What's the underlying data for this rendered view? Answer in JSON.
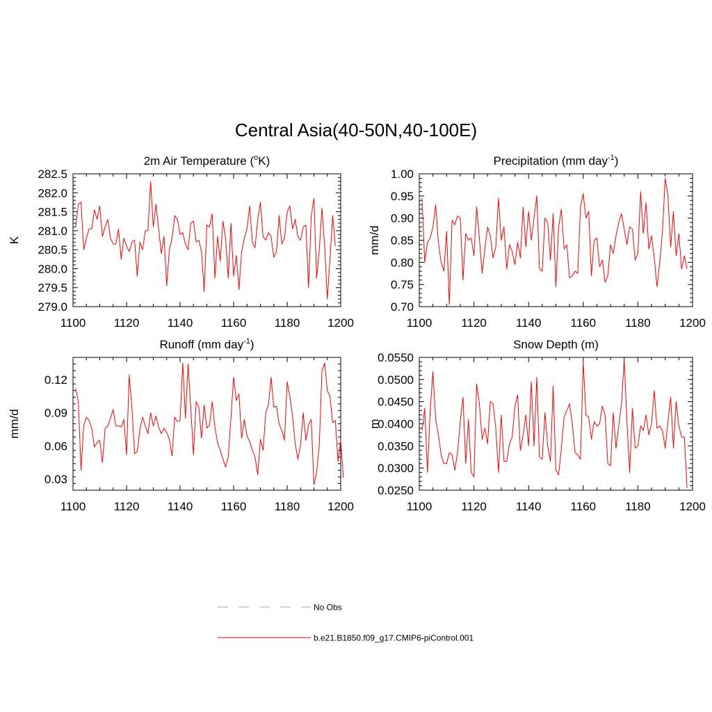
{
  "figure_title": "Central Asia(40-50N,40-100E)",
  "colors": {
    "model": "#ff0000",
    "obs": "#9999ff",
    "axis": "#000000"
  },
  "legend": [
    {
      "label": "No Obs",
      "style": "dashed",
      "color": "#9999ff"
    },
    {
      "label": "b.e21.B1850.f09_g17.CMIP6-piControl.001",
      "style": "solid",
      "color": "#ff0000"
    }
  ],
  "chart_data": [
    {
      "type": "line",
      "position": "top-left",
      "title_main": "2m Air Temperature (",
      "title_sup": "o",
      "title_tail": "K)",
      "ylabel": "K",
      "xlim": [
        1100,
        1200
      ],
      "ylim": [
        279.0,
        282.5
      ],
      "xticks": [
        1100,
        1120,
        1140,
        1160,
        1180,
        1200
      ],
      "yticks": [
        279.0,
        279.5,
        280.0,
        280.5,
        281.0,
        281.5,
        282.0,
        282.5
      ],
      "ytick_decimals": 1,
      "x_start": 1101,
      "series": [
        {
          "name": "b.e21.B1850.f09_g17.CMIP6-piControl.001",
          "values": [
            281.1,
            281.7,
            281.75,
            280.5,
            280.8,
            281.05,
            281.05,
            281.55,
            281.3,
            281.65,
            280.85,
            281.1,
            281.3,
            280.8,
            280.65,
            280.65,
            281.05,
            280.25,
            280.8,
            280.6,
            280.45,
            280.7,
            280.75,
            279.8,
            280.7,
            280.5,
            281.0,
            281.0,
            282.3,
            281.1,
            281.7,
            281.05,
            280.4,
            280.85,
            279.55,
            280.5,
            280.8,
            281.4,
            281.3,
            280.9,
            280.95,
            280.65,
            280.5,
            281.2,
            281.25,
            280.7,
            280.75,
            280.45,
            279.4,
            281.15,
            281.1,
            281.45,
            279.75,
            280.85,
            280.2,
            281.25,
            280.8,
            279.75,
            281.2,
            279.8,
            280.35,
            279.45,
            280.45,
            280.8,
            281.05,
            281.65,
            280.7,
            280.55,
            281.3,
            281.75,
            280.85,
            280.75,
            280.95,
            280.85,
            280.3,
            280.45,
            281.4,
            280.65,
            280.8,
            281.5,
            281.65,
            281.05,
            281.3,
            280.85,
            280.75,
            281.1,
            281.15,
            279.5,
            281.4,
            281.85,
            279.75,
            280.5,
            281.6,
            280.6,
            279.2,
            280.25,
            281.4,
            280.6
          ]
        }
      ]
    },
    {
      "type": "line",
      "position": "top-right",
      "title_main": "Precipitation (mm day",
      "title_sup": "-1",
      "title_tail": ")",
      "ylabel": "mm/d",
      "xlim": [
        1100,
        1200
      ],
      "ylim": [
        0.7,
        1.0
      ],
      "xticks": [
        1100,
        1120,
        1140,
        1160,
        1180,
        1200
      ],
      "yticks": [
        0.7,
        0.75,
        0.8,
        0.85,
        0.9,
        0.95,
        1.0
      ],
      "ytick_decimals": 2,
      "x_start": 1101,
      "series": [
        {
          "name": "b.e21.B1850.f09_g17.CMIP6-piControl.001",
          "values": [
            0.945,
            0.8,
            0.845,
            0.855,
            0.88,
            0.93,
            0.845,
            0.8,
            0.78,
            0.87,
            0.705,
            0.895,
            0.885,
            0.905,
            0.9,
            0.76,
            0.865,
            0.85,
            0.855,
            0.815,
            0.925,
            0.855,
            0.775,
            0.83,
            0.88,
            0.86,
            0.81,
            0.835,
            0.945,
            0.85,
            0.88,
            0.785,
            0.84,
            0.825,
            0.795,
            0.845,
            0.81,
            0.925,
            0.835,
            0.915,
            0.85,
            0.9,
            0.95,
            0.785,
            0.78,
            0.9,
            0.89,
            0.805,
            0.91,
            0.745,
            0.88,
            0.92,
            0.83,
            0.84,
            0.765,
            0.77,
            0.78,
            0.775,
            0.925,
            0.955,
            0.9,
            0.915,
            0.77,
            0.85,
            0.855,
            0.79,
            0.805,
            0.755,
            0.77,
            0.84,
            0.82,
            0.86,
            0.89,
            0.91,
            0.875,
            0.84,
            0.88,
            0.875,
            0.805,
            0.82,
            0.96,
            0.865,
            0.935,
            0.83,
            0.86,
            0.81,
            0.745,
            0.8,
            0.87,
            0.99,
            0.95,
            0.835,
            0.915,
            0.815,
            0.865,
            0.785,
            0.815,
            0.785
          ]
        }
      ]
    },
    {
      "type": "line",
      "position": "bottom-left",
      "title_main": "Runoff (mm day",
      "title_sup": "-1",
      "title_tail": ")",
      "ylabel": "mm/d",
      "xlim": [
        1100,
        1200
      ],
      "ylim": [
        0.02,
        0.14
      ],
      "xticks": [
        1100,
        1120,
        1140,
        1160,
        1180,
        1200
      ],
      "yticks": [
        0.03,
        0.06,
        0.09,
        0.12
      ],
      "ytick_decimals": 2,
      "x_start": 1101,
      "series": [
        {
          "name": "b.e21.B1850.f09_g17.CMIP6-piControl.001",
          "values": [
            0.112,
            0.1,
            0.038,
            0.078,
            0.086,
            0.083,
            0.076,
            0.059,
            0.063,
            0.065,
            0.045,
            0.076,
            0.078,
            0.085,
            0.093,
            0.078,
            0.078,
            0.077,
            0.084,
            0.052,
            0.124,
            0.095,
            0.053,
            0.055,
            0.075,
            0.086,
            0.078,
            0.071,
            0.09,
            0.078,
            0.087,
            0.077,
            0.071,
            0.076,
            0.072,
            0.066,
            0.051,
            0.086,
            0.082,
            0.083,
            0.135,
            0.085,
            0.134,
            0.094,
            0.052,
            0.1,
            0.095,
            0.067,
            0.097,
            0.076,
            0.079,
            0.1,
            0.077,
            0.063,
            0.056,
            0.048,
            0.041,
            0.05,
            0.085,
            0.122,
            0.101,
            0.107,
            0.067,
            0.084,
            0.069,
            0.064,
            0.056,
            0.05,
            0.034,
            0.066,
            0.056,
            0.09,
            0.097,
            0.122,
            0.095,
            0.096,
            0.08,
            0.074,
            0.065,
            0.118,
            0.105,
            0.087,
            0.062,
            0.048,
            0.061,
            0.09,
            0.065,
            0.079,
            0.084,
            0.025,
            0.036,
            0.061,
            0.128,
            0.135,
            0.11,
            0.105,
            0.081,
            0.083,
            0.046,
            0.065,
            0.031
          ]
        }
      ]
    },
    {
      "type": "line",
      "position": "bottom-right",
      "title_main": "Snow Depth (m)",
      "title_sup": "",
      "title_tail": "",
      "ylabel": "m",
      "xlim": [
        1100,
        1200
      ],
      "ylim": [
        0.025,
        0.055
      ],
      "xticks": [
        1100,
        1120,
        1140,
        1160,
        1180,
        1200
      ],
      "yticks": [
        0.025,
        0.03,
        0.035,
        0.04,
        0.045,
        0.05,
        0.055
      ],
      "ytick_decimals": 4,
      "x_start": 1101,
      "series": [
        {
          "name": "b.e21.B1850.f09_g17.CMIP6-piControl.001",
          "values": [
            0.0385,
            0.0435,
            0.029,
            0.043,
            0.0518,
            0.041,
            0.0375,
            0.033,
            0.031,
            0.031,
            0.0335,
            0.033,
            0.0295,
            0.0335,
            0.0405,
            0.046,
            0.031,
            0.041,
            0.029,
            0.028,
            0.049,
            0.0445,
            0.0365,
            0.039,
            0.0355,
            0.045,
            0.0445,
            0.039,
            0.029,
            0.042,
            0.0315,
            0.0315,
            0.0355,
            0.037,
            0.044,
            0.0465,
            0.034,
            0.0375,
            0.042,
            0.035,
            0.0495,
            0.035,
            0.0505,
            0.0325,
            0.032,
            0.0425,
            0.035,
            0.0315,
            0.0485,
            0.0295,
            0.0285,
            0.0345,
            0.0415,
            0.043,
            0.0445,
            0.04,
            0.0335,
            0.033,
            0.032,
            0.054,
            0.042,
            0.0415,
            0.0365,
            0.0405,
            0.0395,
            0.04,
            0.044,
            0.042,
            0.031,
            0.0305,
            0.0425,
            0.0345,
            0.0395,
            0.0445,
            0.0545,
            0.0405,
            0.029,
            0.0435,
            0.0345,
            0.035,
            0.0395,
            0.0385,
            0.042,
            0.0375,
            0.04,
            0.0475,
            0.039,
            0.0395,
            0.0385,
            0.0345,
            0.0405,
            0.046,
            0.0345,
            0.045,
            0.0395,
            0.037,
            0.037,
            0.0255
          ]
        }
      ]
    }
  ]
}
